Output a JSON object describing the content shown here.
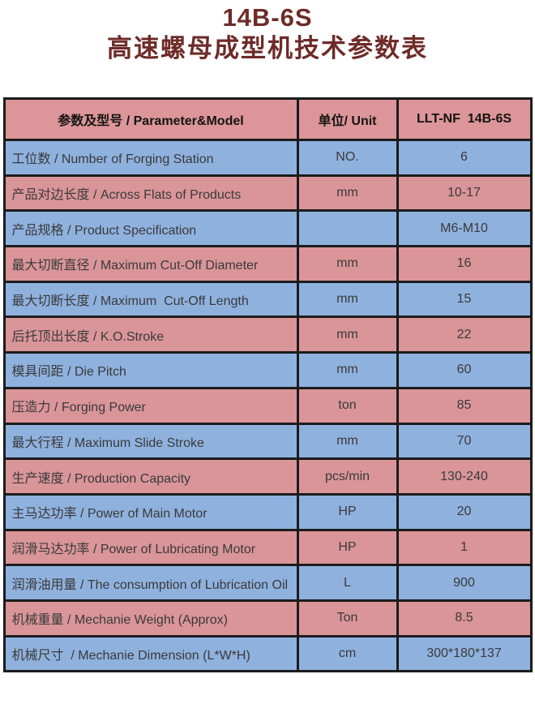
{
  "title": {
    "model": "14B-6S",
    "subtitle": "高速螺母成型机技术参数表"
  },
  "table": {
    "headers": {
      "parameter": "参数及型号 / Parameter&Model",
      "unit": "单位/ Unit",
      "model": "LLT-NF  14B-6S"
    },
    "rows": [
      {
        "parameter": "工位数 / Number of Forging Station",
        "unit": "NO.",
        "value": "6"
      },
      {
        "parameter": "产品对边长度 / Across Flats of Products",
        "unit": "mm",
        "value": "10-17"
      },
      {
        "parameter": "产品规格 / Product Specification",
        "unit": "",
        "value": "M6-M10"
      },
      {
        "parameter": "最大切断直径 / Maximum Cut-Off Diameter",
        "unit": "mm",
        "value": "16"
      },
      {
        "parameter": "最大切断长度 / Maximum  Cut-Off Length",
        "unit": "mm",
        "value": "15"
      },
      {
        "parameter": "后托顶出长度 / K.O.Stroke",
        "unit": "mm",
        "value": "22"
      },
      {
        "parameter": "模具间距 / Die Pitch",
        "unit": "mm",
        "value": "60"
      },
      {
        "parameter": "压造力 / Forging Power",
        "unit": "ton",
        "value": "85"
      },
      {
        "parameter": "最大行程 / Maximum Slide Stroke",
        "unit": "mm",
        "value": "70"
      },
      {
        "parameter": "生产速度 / Production Capacity",
        "unit": "pcs/min",
        "value": "130-240"
      },
      {
        "parameter": "主马达功率 / Power of Main Motor",
        "unit": "HP",
        "value": "20"
      },
      {
        "parameter": "润滑马达功率 / Power of Lubricating Motor",
        "unit": "HP",
        "value": "1"
      },
      {
        "parameter": "润滑油用量 / The consumption of Lubrication Oil",
        "unit": "L",
        "value": "900"
      },
      {
        "parameter": "机械重量 / Mechanie Weight (Approx)",
        "unit": "Ton",
        "value": "8.5"
      },
      {
        "parameter": "机械尺寸  / Mechanie Dimension (L*W*H)",
        "unit": "cm",
        "value": "300*180*137"
      }
    ]
  },
  "colors": {
    "title": "#6e2b28",
    "headerPink": "#dc9598",
    "rowPink": "#da9599",
    "rowBlue": "#8fb1de",
    "border": "#1c1c1c",
    "cellText": "#3a3a3a",
    "headerText": "#141414"
  }
}
